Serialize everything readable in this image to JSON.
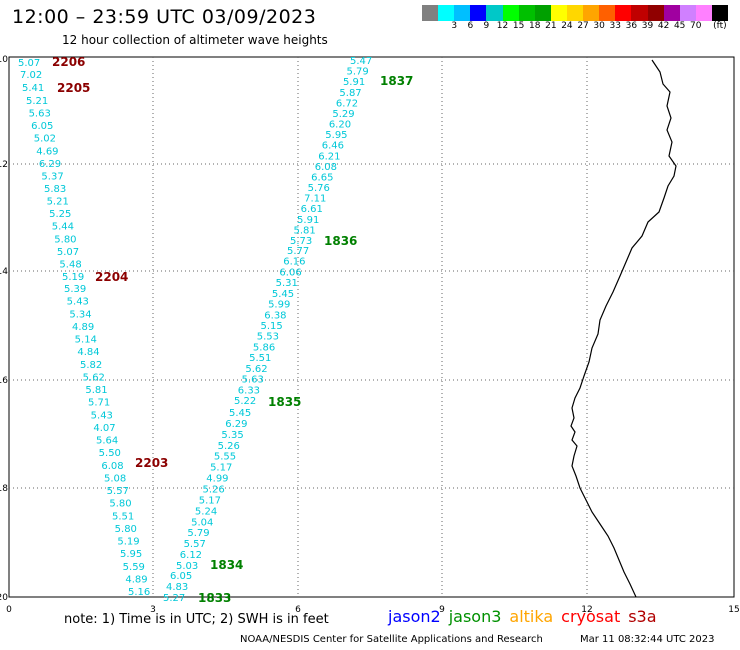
{
  "header": {
    "title": "12:00 – 23:59 UTC 03/09/2023",
    "subtitle": "12 hour collection of altimeter wave heights"
  },
  "colorbar": {
    "colors": [
      "#808080",
      "#00ffff",
      "#00bfff",
      "#0000ff",
      "#00c8c8",
      "#00ff00",
      "#00c000",
      "#00a000",
      "#ffff00",
      "#ffd700",
      "#ffa500",
      "#ff6000",
      "#ff0000",
      "#c00000",
      "#900000",
      "#a000a0",
      "#d080ff",
      "#ff80ff",
      "#000000"
    ],
    "labels": [
      "3",
      "6",
      "9",
      "12",
      "15",
      "18",
      "21",
      "24",
      "27",
      "30",
      "33",
      "36",
      "39",
      "42",
      "45",
      "70",
      "(ft)"
    ]
  },
  "axes": {
    "x_ticks": [
      "0",
      "3",
      "6",
      "9",
      "12",
      "15"
    ],
    "y_ticks": [
      "-10",
      "-12",
      "-14",
      "-16",
      "-18",
      "-20"
    ]
  },
  "tracks": [
    {
      "pass": "2206",
      "values": [
        "5.07"
      ]
    },
    {
      "pass": "2205",
      "values": [
        "7.02",
        "5.41"
      ]
    },
    {
      "pass": "2204",
      "values": [
        "5.21",
        "5.63",
        "6.05",
        "5.02",
        "4.69",
        "6.29",
        "5.37",
        "5.83",
        "5.21",
        "5.25",
        "5.44",
        "5.80",
        "5.07",
        "5.48",
        "5.19"
      ]
    },
    {
      "pass": "2203",
      "values": [
        "5.39",
        "5.43",
        "5.34",
        "4.89",
        "5.14",
        "4.84",
        "5.82",
        "5.62",
        "5.81",
        "5.71",
        "5.43",
        "4.07",
        "5.64",
        "5.50",
        "6.08",
        "5.08",
        "5.57",
        "5.80",
        "5.51",
        "5.80",
        "5.19",
        "5.95",
        "5.59",
        "4.89",
        "5.16"
      ]
    },
    {
      "pass": "1837",
      "values": [
        "5.47",
        "5.79",
        "5.91",
        "5.87",
        "6.72",
        "5.29",
        "6.20",
        "5.95",
        "6.46",
        "6.21",
        "6.08",
        "6.65",
        "5.76",
        "7.11",
        "6.61",
        "5.91",
        "5.81",
        "5.73"
      ]
    },
    {
      "pass": "1836",
      "values": [
        "5.77",
        "6.16",
        "6.06",
        "5.31",
        "5.45",
        "5.99",
        "6.38",
        "5.15",
        "5.53",
        "5.86",
        "5.51",
        "5.62",
        "5.63",
        "6.33",
        "5.22"
      ]
    },
    {
      "pass": "1835",
      "values": [
        "5.45",
        "6.29",
        "5.35",
        "5.26",
        "5.55",
        "5.17",
        "4.99",
        "5.26",
        "5.17",
        "5.24",
        "5.04",
        "5.79",
        "5.57",
        "6.12",
        "5.03"
      ]
    },
    {
      "pass": "1834",
      "values": [
        "6.05",
        "4.83"
      ]
    },
    {
      "pass": "1833",
      "values": [
        "5.27"
      ]
    }
  ],
  "footer": {
    "note": "note: 1) Time is in UTC; 2) SWH is in feet",
    "satellites": [
      {
        "name": "jason2",
        "color": "#0000ff"
      },
      {
        "name": "jason3",
        "color": "#009000"
      },
      {
        "name": "altika",
        "color": "#ffa500"
      },
      {
        "name": "cryosat",
        "color": "#ff0000"
      },
      {
        "name": "s3a",
        "color": "#b00000"
      }
    ],
    "credit": "NOAA/NESDIS Center for Satellite Applications and Research",
    "timestamp": "Mar 11 08:32:44 UTC 2023"
  },
  "colors": {
    "obs": "#00c8d8",
    "pass_red": "#8b0000",
    "pass_green": "#008000"
  }
}
